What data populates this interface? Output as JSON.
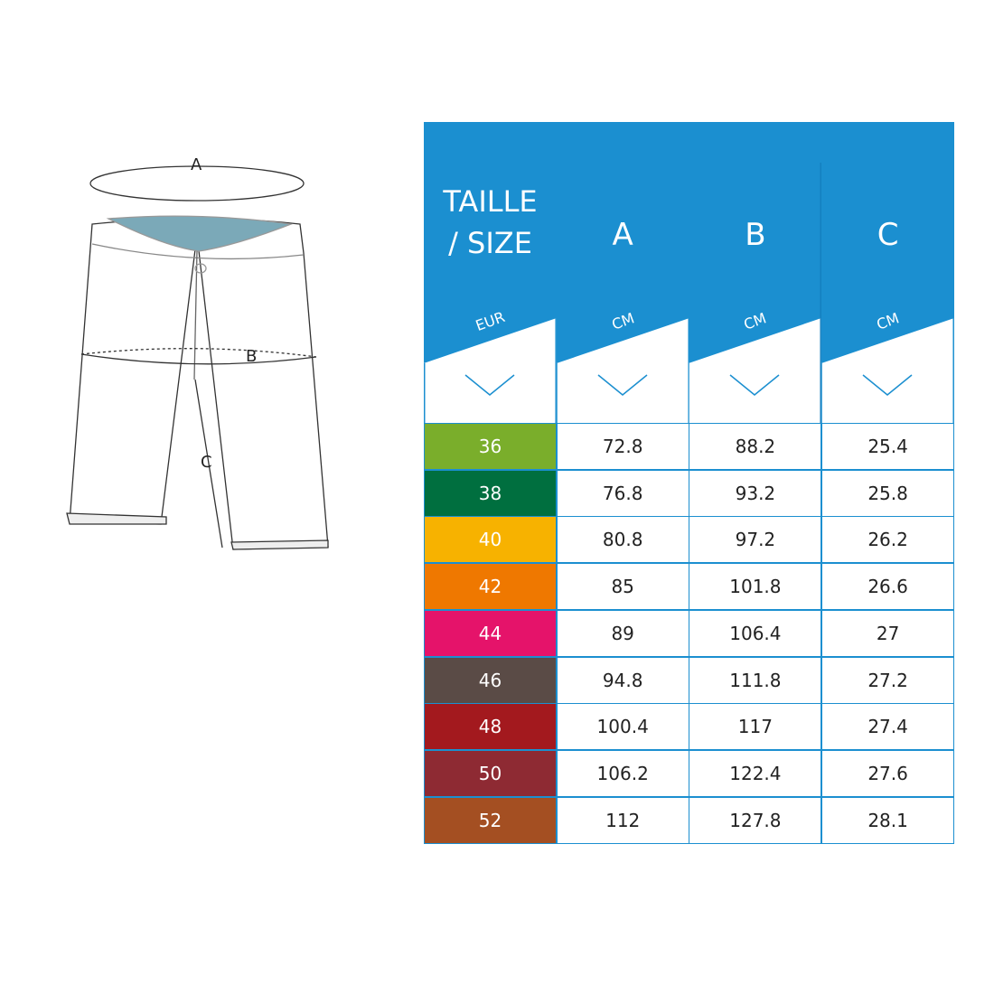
{
  "diagram": {
    "labels": {
      "a": "A",
      "b": "B",
      "c": "C"
    }
  },
  "table": {
    "accent_color": "#1b8fd0",
    "headers": [
      {
        "title": "TAILLE",
        "title2": "/ SIZE",
        "unit": "EUR"
      },
      {
        "title": "A",
        "unit": "CM"
      },
      {
        "title": "B",
        "unit": "CM"
      },
      {
        "title": "C",
        "unit": "CM"
      }
    ],
    "chevron_icon": "chevron-down-icon",
    "rows": [
      {
        "size": "36",
        "color": "#7aae2b",
        "a": "72.8",
        "b": "88.2",
        "c": "25.4"
      },
      {
        "size": "38",
        "color": "#006f3f",
        "a": "76.8",
        "b": "93.2",
        "c": "25.8"
      },
      {
        "size": "40",
        "color": "#f7b200",
        "a": "80.8",
        "b": "97.2",
        "c": "26.2"
      },
      {
        "size": "42",
        "color": "#ef7800",
        "a": "85",
        "b": "101.8",
        "c": "26.6"
      },
      {
        "size": "44",
        "color": "#e5136a",
        "a": "89",
        "b": "106.4",
        "c": "27"
      },
      {
        "size": "46",
        "color": "#5a4b46",
        "a": "94.8",
        "b": "111.8",
        "c": "27.2"
      },
      {
        "size": "48",
        "color": "#a3191e",
        "a": "100.4",
        "b": "117",
        "c": "27.4"
      },
      {
        "size": "50",
        "color": "#8e2a33",
        "a": "106.2",
        "b": "122.4",
        "c": "27.6"
      },
      {
        "size": "52",
        "color": "#a44f22",
        "a": "112",
        "b": "127.8",
        "c": "28.1"
      }
    ]
  }
}
